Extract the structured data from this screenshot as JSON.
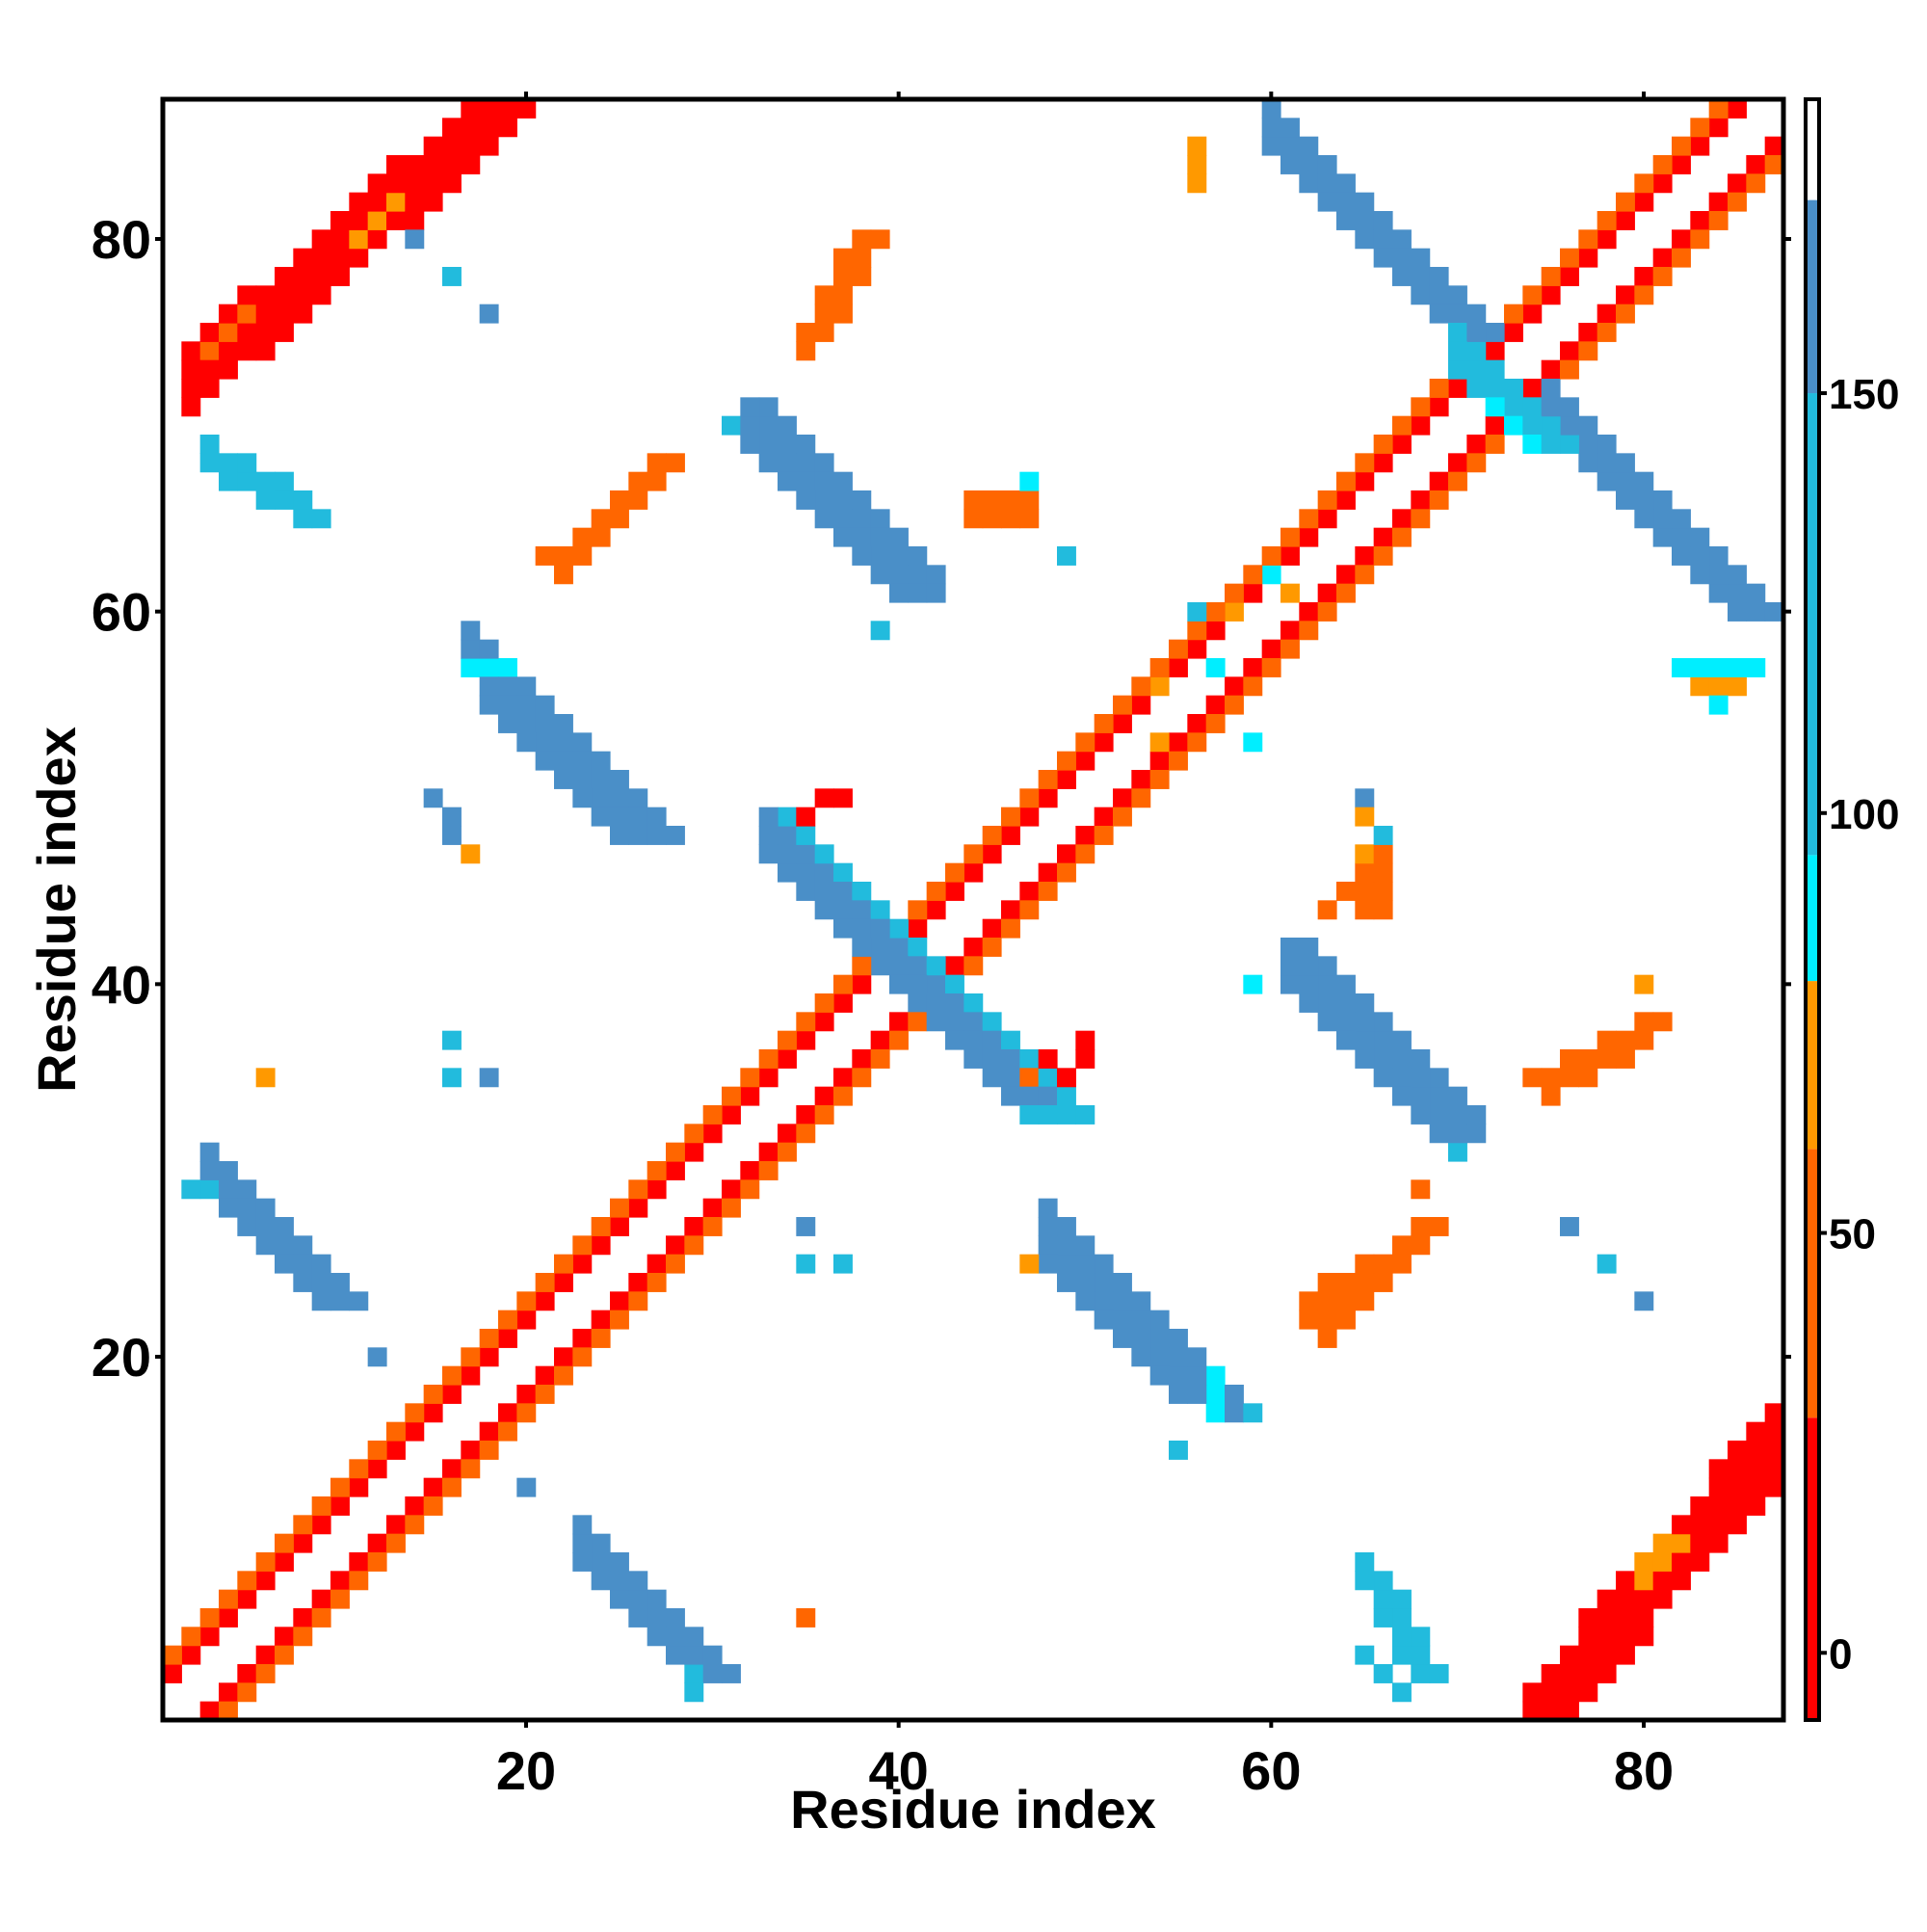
{
  "chart_data": {
    "type": "heatmap",
    "xlabel": "Residue index",
    "ylabel": "Residue index",
    "xlim": [
      0.5,
      87.5
    ],
    "ylim": [
      0.5,
      87.5
    ],
    "x_ticks": [
      20,
      40,
      60,
      80
    ],
    "y_ticks": [
      20,
      40,
      60,
      80
    ],
    "grid": false,
    "colorbar": {
      "position": "right",
      "range": [
        -8,
        185
      ],
      "ticks": [
        0,
        50,
        100,
        150
      ],
      "bands": [
        {
          "from": -8,
          "to": 28,
          "color": "#ff0000"
        },
        {
          "from": 28,
          "to": 60,
          "color": "#ff6600"
        },
        {
          "from": 60,
          "to": 80,
          "color": "#ff9900"
        },
        {
          "from": 80,
          "to": 95,
          "color": "#00eeff"
        },
        {
          "from": 95,
          "to": 150,
          "color": "#22bbdd"
        },
        {
          "from": 150,
          "to": 173,
          "color": "#4a8fc8"
        },
        {
          "from": 173,
          "to": 185,
          "color": "#ffffff"
        }
      ]
    },
    "colors": {
      "red": "#ff0000",
      "orange_red": "#ff6600",
      "orange": "#ff9900",
      "cyan": "#00eeff",
      "light_blue": "#22bbdd",
      "steel_blue": "#4a8fc8"
    },
    "segments": [
      {
        "from": [
          1,
          3
        ],
        "to": [
          85,
          87
        ],
        "color": "red",
        "width": 1
      },
      {
        "from": [
          3,
          1
        ],
        "to": [
          87,
          85
        ],
        "color": "red",
        "width": 1
      },
      {
        "from": [
          1,
          4
        ],
        "to": [
          84,
          87
        ],
        "color": "orange_red",
        "width": 1
      },
      {
        "from": [
          4,
          1
        ],
        "to": [
          87,
          84
        ],
        "color": "orange_red",
        "width": 1
      },
      {
        "from": [
          3,
          29
        ],
        "to": [
          9,
          23
        ],
        "color": "steel_blue",
        "width": 3
      },
      {
        "from": [
          29,
          3
        ],
        "to": [
          23,
          9
        ],
        "color": "steel_blue",
        "width": 3
      },
      {
        "from": [
          2,
          29
        ],
        "to": [
          3,
          29
        ],
        "color": "light_blue",
        "width": 1
      },
      {
        "from": [
          29,
          2
        ],
        "to": [
          29,
          3
        ],
        "color": "light_blue",
        "width": 1
      },
      {
        "from": [
          17,
          57
        ],
        "to": [
          26,
          48
        ],
        "color": "steel_blue",
        "width": 3
      },
      {
        "from": [
          57,
          17
        ],
        "to": [
          48,
          26
        ],
        "color": "steel_blue",
        "width": 3
      },
      {
        "from": [
          33,
          69
        ],
        "to": [
          40,
          62
        ],
        "color": "steel_blue",
        "width": 3
      },
      {
        "from": [
          69,
          33
        ],
        "to": [
          62,
          40
        ],
        "color": "steel_blue",
        "width": 3
      },
      {
        "from": [
          31,
          70
        ],
        "to": [
          33,
          70
        ],
        "color": "light_blue",
        "width": 1
      },
      {
        "from": [
          70,
          31
        ],
        "to": [
          70,
          33
        ],
        "color": "light_blue",
        "width": 1
      },
      {
        "from": [
          34,
          46
        ],
        "to": [
          47,
          33
        ],
        "color": "light_blue",
        "width": 4
      },
      {
        "from": [
          46,
          34
        ],
        "to": [
          33,
          47
        ],
        "color": "steel_blue",
        "width": 3
      },
      {
        "from": [
          48,
          25
        ],
        "to": [
          55,
          18
        ],
        "color": "steel_blue",
        "width": 3
      },
      {
        "from": [
          25,
          48
        ],
        "to": [
          18,
          55
        ],
        "color": "steel_blue",
        "width": 3
      },
      {
        "from": [
          61,
          40
        ],
        "to": [
          69,
          32
        ],
        "color": "steel_blue",
        "width": 3
      },
      {
        "from": [
          40,
          61
        ],
        "to": [
          32,
          69
        ],
        "color": "steel_blue",
        "width": 3
      },
      {
        "from": [
          60,
          85
        ],
        "to": [
          70,
          75
        ],
        "color": "steel_blue",
        "width": 3
      },
      {
        "from": [
          85,
          60
        ],
        "to": [
          75,
          70
        ],
        "color": "steel_blue",
        "width": 3
      },
      {
        "from": [
          70,
          73
        ],
        "to": [
          74,
          69
        ],
        "color": "light_blue",
        "width": 3
      },
      {
        "from": [
          72,
          71
        ],
        "to": [
          74,
          69
        ],
        "color": "cyan",
        "width": 1
      },
      {
        "from": [
          2,
          74
        ],
        "to": [
          17,
          87
        ],
        "color": "red",
        "width": 4
      },
      {
        "from": [
          74,
          2
        ],
        "to": [
          87,
          17
        ],
        "color": "red",
        "width": 4
      },
      {
        "from": [
          3,
          74
        ],
        "to": [
          5,
          76
        ],
        "color": "orange_red",
        "width": 1
      },
      {
        "from": [
          11,
          80
        ],
        "to": [
          13,
          82
        ],
        "color": "orange",
        "width": 1
      },
      {
        "from": [
          80,
          9
        ],
        "to": [
          81,
          10
        ],
        "color": "orange",
        "width": 2
      },
      {
        "from": [
          3,
          68
        ],
        "to": [
          8,
          65
        ],
        "color": "light_blue",
        "width": 2
      },
      {
        "from": [
          68,
          3
        ],
        "to": [
          65,
          8
        ],
        "color": "light_blue",
        "width": 2
      },
      {
        "from": [
          15,
          50
        ],
        "to": [
          16,
          48
        ],
        "color": "steel_blue",
        "width": 1
      },
      {
        "from": [
          65,
          4
        ],
        "to": [
          67,
          2
        ],
        "color": "light_blue",
        "width": 1
      },
      {
        "from": [
          22,
          63
        ],
        "to": [
          27,
          68
        ],
        "color": "orange_red",
        "width": 2
      },
      {
        "from": [
          63,
          22
        ],
        "to": [
          68,
          27
        ],
        "color": "orange_red",
        "width": 2
      },
      {
        "from": [
          35,
          75
        ],
        "to": [
          38,
          80
        ],
        "color": "orange_red",
        "width": 2
      },
      {
        "from": [
          75,
          35
        ],
        "to": [
          80,
          38
        ],
        "color": "orange_red",
        "width": 2
      },
      {
        "from": [
          44,
          65
        ],
        "to": [
          47,
          65
        ],
        "color": "orange_red",
        "width": 2
      },
      {
        "from": [
          65,
          44
        ],
        "to": [
          65,
          47
        ],
        "color": "orange_red",
        "width": 2
      },
      {
        "from": [
          63,
          44
        ],
        "to": [
          65,
          46
        ],
        "color": "orange_red",
        "width": 1
      },
      {
        "from": [
          62,
          23
        ],
        "to": [
          67,
          26
        ],
        "color": "orange_red",
        "width": 2
      },
      {
        "from": [
          35,
          49
        ],
        "to": [
          37,
          50
        ],
        "color": "red",
        "width": 1
      },
      {
        "from": [
          49,
          35
        ],
        "to": [
          50,
          37
        ],
        "color": "red",
        "width": 1
      },
      {
        "from": [
          57,
          17
        ],
        "to": [
          57,
          19
        ],
        "color": "cyan",
        "width": 1
      },
      {
        "from": [
          17,
          57
        ],
        "to": [
          19,
          57
        ],
        "color": "cyan",
        "width": 1
      },
      {
        "from": [
          83,
          56
        ],
        "to": [
          85,
          56
        ],
        "color": "orange",
        "width": 1
      },
      {
        "from": [
          56,
          83
        ],
        "to": [
          56,
          85
        ],
        "color": "orange",
        "width": 1
      },
      {
        "from": [
          82,
          57
        ],
        "to": [
          86,
          57
        ],
        "color": "cyan",
        "width": 1
      }
    ],
    "cells": [
      [
        14,
        80,
        "steel_blue"
      ],
      [
        16,
        78,
        "light_blue"
      ],
      [
        18,
        76,
        "steel_blue"
      ],
      [
        21,
        63,
        "orange_red"
      ],
      [
        39,
        59,
        "light_blue"
      ],
      [
        6,
        35,
        "orange"
      ],
      [
        16,
        37,
        "light_blue"
      ],
      [
        16,
        35,
        "light_blue"
      ],
      [
        18,
        35,
        "steel_blue"
      ],
      [
        17,
        47,
        "orange"
      ],
      [
        35,
        27,
        "steel_blue"
      ],
      [
        35,
        25,
        "light_blue"
      ],
      [
        37,
        25,
        "light_blue"
      ],
      [
        12,
        20,
        "steel_blue"
      ],
      [
        20,
        13,
        "steel_blue"
      ],
      [
        35,
        6,
        "orange_red"
      ],
      [
        47,
        25,
        "orange"
      ],
      [
        49,
        63,
        "light_blue"
      ],
      [
        47,
        67,
        "cyan"
      ],
      [
        59,
        40,
        "cyan"
      ],
      [
        59,
        53,
        "cyan"
      ],
      [
        76,
        27,
        "steel_blue"
      ],
      [
        78,
        25,
        "light_blue"
      ],
      [
        80,
        23,
        "steel_blue"
      ],
      [
        80,
        40,
        "orange"
      ],
      [
        84,
        55,
        "cyan"
      ],
      [
        55,
        15,
        "light_blue"
      ],
      [
        59,
        17,
        "light_blue"
      ],
      [
        63,
        23,
        "orange_red"
      ],
      [
        74,
        35,
        "orange_red"
      ],
      [
        65,
        50,
        "steel_blue"
      ],
      [
        66,
        48,
        "light_blue"
      ],
      [
        65,
        49,
        "orange"
      ],
      [
        65,
        47,
        "orange"
      ],
      [
        56,
        60,
        "light_blue"
      ],
      [
        57,
        57,
        "cyan"
      ],
      [
        58,
        60,
        "orange"
      ],
      [
        60,
        62,
        "cyan"
      ],
      [
        61,
        61,
        "orange"
      ],
      [
        54,
        56,
        "orange"
      ],
      [
        54,
        53,
        "orange"
      ],
      [
        47,
        35,
        "orange_red"
      ],
      [
        48,
        36,
        "red"
      ],
      [
        68,
        29,
        "orange_red"
      ]
    ]
  }
}
